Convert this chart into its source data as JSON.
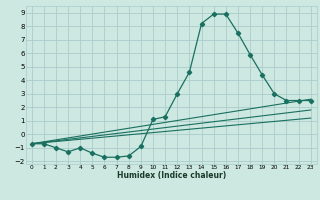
{
  "xlabel": "Humidex (Indice chaleur)",
  "xlim": [
    -0.5,
    23.5
  ],
  "ylim": [
    -2.2,
    9.5
  ],
  "xticks": [
    0,
    1,
    2,
    3,
    4,
    5,
    6,
    7,
    8,
    9,
    10,
    11,
    12,
    13,
    14,
    15,
    16,
    17,
    18,
    19,
    20,
    21,
    22,
    23
  ],
  "yticks": [
    -2,
    -1,
    0,
    1,
    2,
    3,
    4,
    5,
    6,
    7,
    8,
    9
  ],
  "bg_color": "#cce8e0",
  "grid_color": "#aacccc",
  "line_color": "#1a7060",
  "main_line": {
    "x": [
      0,
      1,
      2,
      3,
      4,
      5,
      6,
      7,
      8,
      9,
      10,
      11,
      12,
      13,
      14,
      15,
      16,
      17,
      18,
      19,
      20,
      21,
      22,
      23
    ],
    "y": [
      -0.7,
      -0.7,
      -1.0,
      -1.3,
      -1.0,
      -1.4,
      -1.7,
      -1.7,
      -1.6,
      -0.9,
      1.1,
      1.3,
      3.0,
      4.6,
      8.2,
      8.9,
      8.9,
      7.5,
      5.9,
      4.4,
      3.0,
      2.5,
      2.5,
      2.5
    ]
  },
  "reg_lines": [
    {
      "x": [
        0,
        23
      ],
      "y": [
        -0.7,
        2.6
      ]
    },
    {
      "x": [
        0,
        23
      ],
      "y": [
        -0.7,
        1.8
      ]
    },
    {
      "x": [
        0,
        23
      ],
      "y": [
        -0.7,
        1.2
      ]
    }
  ]
}
